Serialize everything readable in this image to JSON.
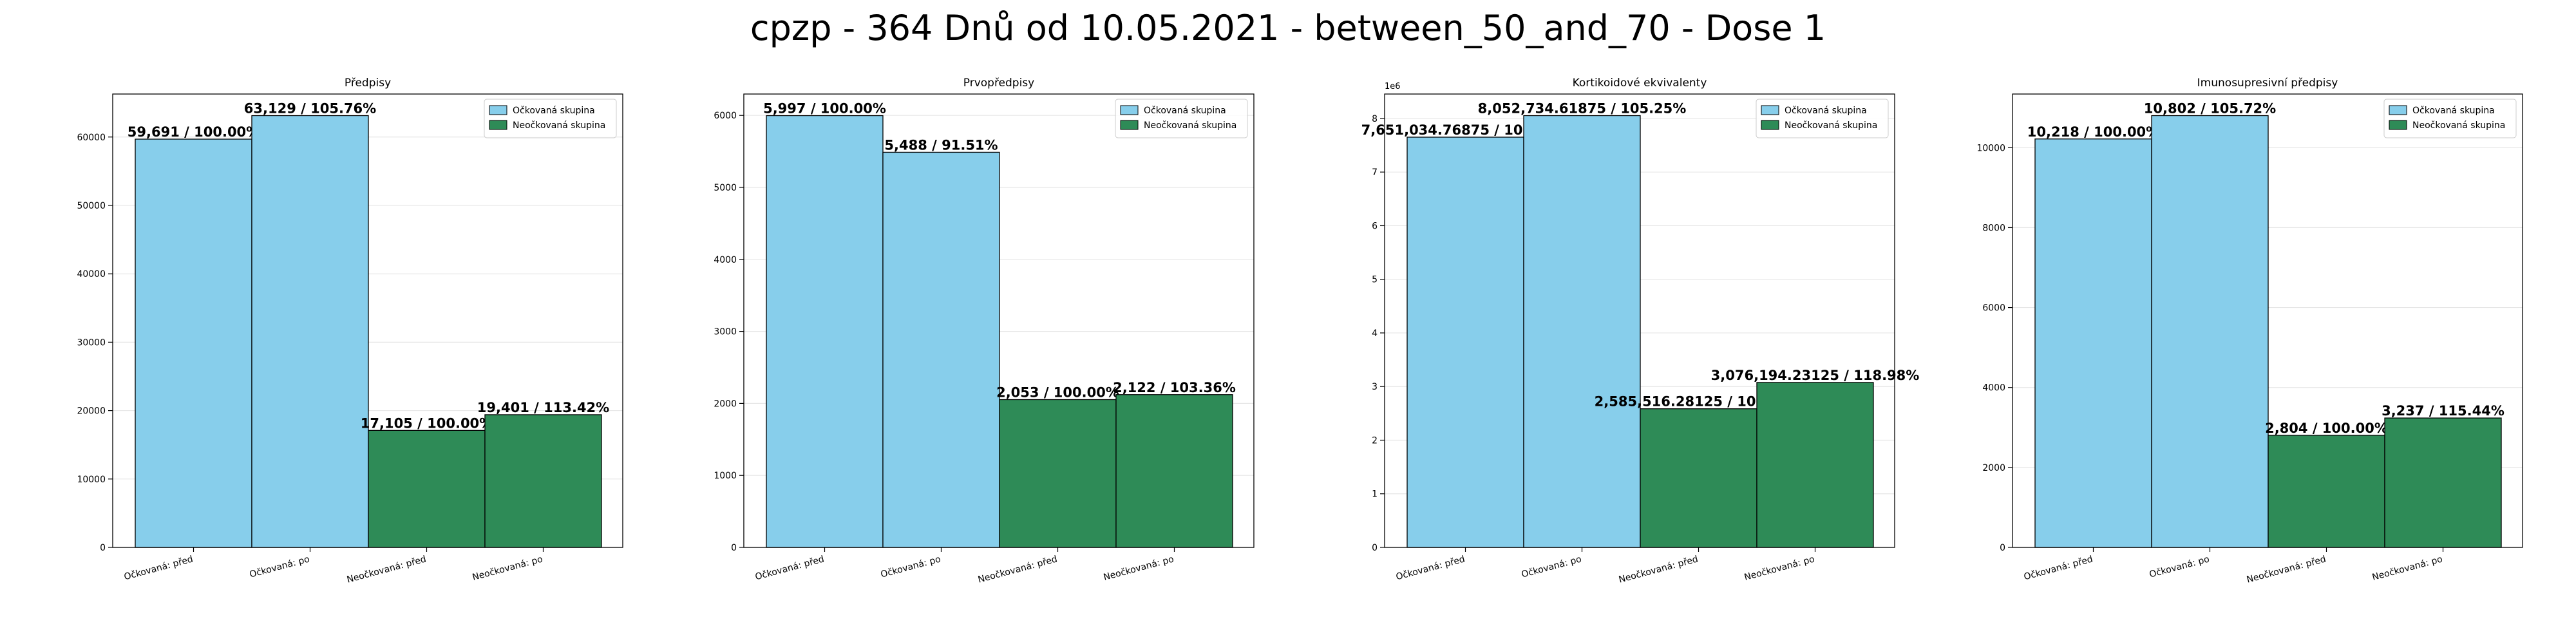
{
  "suptitle": "cpzp - 364 Dnů od 10.05.2021 - between_50_and_70 - Dose 1",
  "colors": {
    "vaccinated": "#87ceeb",
    "unvaccinated": "#2e8b57"
  },
  "chart_data": [
    {
      "type": "bar",
      "title": "Předpisy",
      "categories": [
        "Očkovaná: před",
        "Očkovaná: po",
        "Neočkovaná: před",
        "Neočkovaná: po"
      ],
      "values": [
        59691,
        63129,
        17105,
        19401
      ],
      "labels": [
        "59,691 / 100.00%",
        "63,129 / 105.76%",
        "17,105 / 100.00%",
        "19,401 / 113.42%"
      ],
      "groups": [
        "vaccinated",
        "vaccinated",
        "unvaccinated",
        "unvaccinated"
      ],
      "legend": [
        "Očkovaná skupina",
        "Neočkovaná skupina"
      ],
      "legend_loc": "top-right",
      "ylim": [
        0,
        66285
      ],
      "yticks": [
        0,
        10000,
        20000,
        30000,
        40000,
        50000,
        60000
      ],
      "ytick_labels": [
        "0",
        "10000",
        "20000",
        "30000",
        "40000",
        "50000",
        "60000"
      ],
      "offset_label": "",
      "grid": true
    },
    {
      "type": "bar",
      "title": "Prvopředpisy",
      "categories": [
        "Očkovaná: před",
        "Očkovaná: po",
        "Neočkovaná: před",
        "Neočkovaná: po"
      ],
      "values": [
        5997,
        5488,
        2053,
        2122
      ],
      "labels": [
        "5,997 / 100.00%",
        "5,488 / 91.51%",
        "2,053 / 100.00%",
        "2,122 / 103.36%"
      ],
      "groups": [
        "vaccinated",
        "vaccinated",
        "unvaccinated",
        "unvaccinated"
      ],
      "legend": [
        "Očkovaná skupina",
        "Neočkovaná skupina"
      ],
      "legend_loc": "top-right",
      "ylim": [
        0,
        6297
      ],
      "yticks": [
        0,
        1000,
        2000,
        3000,
        4000,
        5000,
        6000
      ],
      "ytick_labels": [
        "0",
        "1000",
        "2000",
        "3000",
        "4000",
        "5000",
        "6000"
      ],
      "offset_label": "",
      "grid": true
    },
    {
      "type": "bar",
      "title": "Kortikoidové ekvivalenty",
      "categories": [
        "Očkovaná: před",
        "Očkovaná: po",
        "Neočkovaná: před",
        "Neočkovaná: po"
      ],
      "values": [
        7651034.76875,
        8052734.61875,
        2585516.28125,
        3076194.23125
      ],
      "labels": [
        "7,651,034.76875 / 100.00%",
        "8,052,734.61875 / 105.25%",
        "2,585,516.28125 / 100.00%",
        "3,076,194.23125 / 118.98%"
      ],
      "groups": [
        "vaccinated",
        "vaccinated",
        "unvaccinated",
        "unvaccinated"
      ],
      "legend": [
        "Očkovaná skupina",
        "Neočkovaná skupina"
      ],
      "legend_loc": "top-right",
      "ylim": [
        0,
        8455371
      ],
      "yticks": [
        0,
        1000000,
        2000000,
        3000000,
        4000000,
        5000000,
        6000000,
        7000000,
        8000000
      ],
      "ytick_labels": [
        "0",
        "1",
        "2",
        "3",
        "4",
        "5",
        "6",
        "7",
        "8"
      ],
      "offset_label": "1e6",
      "grid": true
    },
    {
      "type": "bar",
      "title": "Imunosupresivní předpisy",
      "categories": [
        "Očkovaná: před",
        "Očkovaná: po",
        "Neočkovaná: před",
        "Neočkovaná: po"
      ],
      "values": [
        10218,
        10802,
        2804,
        3237
      ],
      "labels": [
        "10,218 / 100.00%",
        "10,802 / 105.72%",
        "2,804 / 100.00%",
        "3,237 / 115.44%"
      ],
      "groups": [
        "vaccinated",
        "vaccinated",
        "unvaccinated",
        "unvaccinated"
      ],
      "legend": [
        "Očkovaná skupina",
        "Neočkovaná skupina"
      ],
      "legend_loc": "top-right",
      "ylim": [
        0,
        11342
      ],
      "yticks": [
        0,
        2000,
        4000,
        6000,
        8000,
        10000
      ],
      "ytick_labels": [
        "0",
        "2000",
        "4000",
        "6000",
        "8000",
        "10000"
      ],
      "offset_label": "",
      "grid": true
    }
  ]
}
